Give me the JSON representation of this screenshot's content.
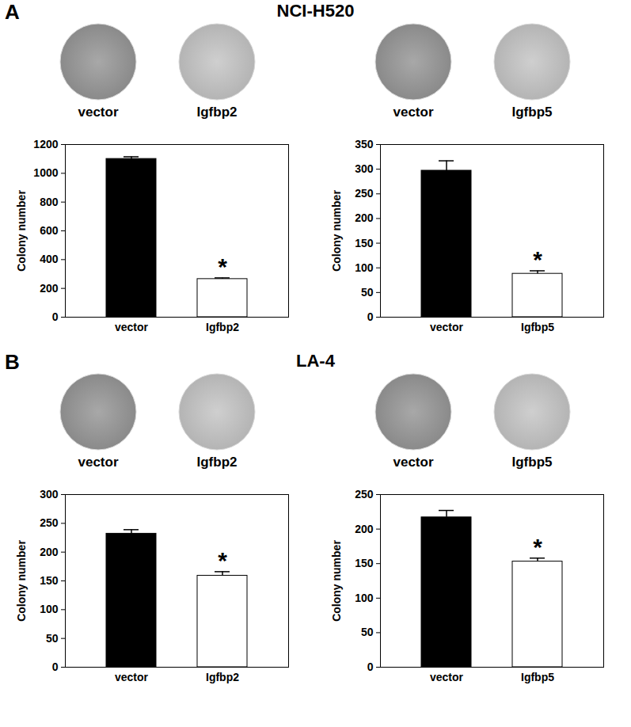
{
  "panels": [
    {
      "label": "A",
      "title": "NCI-H520",
      "charts": [
        0,
        1
      ]
    },
    {
      "label": "B",
      "title": "LA-4",
      "charts": [
        2,
        3
      ]
    }
  ],
  "chart_data": [
    {
      "type": "bar",
      "categories": [
        "vector",
        "Igfbp2"
      ],
      "values": [
        1100,
        265
      ],
      "errors": [
        15,
        8
      ],
      "colors": [
        "#000000",
        "#ffffff"
      ],
      "y_label": "Colony number",
      "ylim": [
        0,
        1200
      ],
      "yticks": [
        0,
        200,
        400,
        600,
        800,
        1000,
        1200
      ],
      "annotations": [
        {
          "category": "Igfbp2",
          "text": "*"
        }
      ]
    },
    {
      "type": "bar",
      "categories": [
        "vector",
        "Igfbp5"
      ],
      "values": [
        297,
        88
      ],
      "errors": [
        20,
        6
      ],
      "colors": [
        "#000000",
        "#ffffff"
      ],
      "y_label": "Colony number",
      "ylim": [
        0,
        350
      ],
      "yticks": [
        0,
        50,
        100,
        150,
        200,
        250,
        300,
        350
      ],
      "annotations": [
        {
          "category": "Igfbp5",
          "text": "*"
        }
      ]
    },
    {
      "type": "bar",
      "categories": [
        "vector",
        "Igfbp2"
      ],
      "values": [
        232,
        159
      ],
      "errors": [
        7,
        7
      ],
      "colors": [
        "#000000",
        "#ffffff"
      ],
      "y_label": "Colony number",
      "ylim": [
        0,
        300
      ],
      "yticks": [
        0,
        50,
        100,
        150,
        200,
        250,
        300
      ],
      "annotations": [
        {
          "category": "Igfbp2",
          "text": "*"
        }
      ]
    },
    {
      "type": "bar",
      "categories": [
        "vector",
        "Igfbp5"
      ],
      "values": [
        217,
        153
      ],
      "errors": [
        10,
        5
      ],
      "colors": [
        "#000000",
        "#ffffff"
      ],
      "y_label": "Colony number",
      "ylim": [
        0,
        250
      ],
      "yticks": [
        0,
        50,
        100,
        150,
        200,
        250
      ],
      "annotations": [
        {
          "category": "Igfbp5",
          "text": "*"
        }
      ]
    }
  ]
}
